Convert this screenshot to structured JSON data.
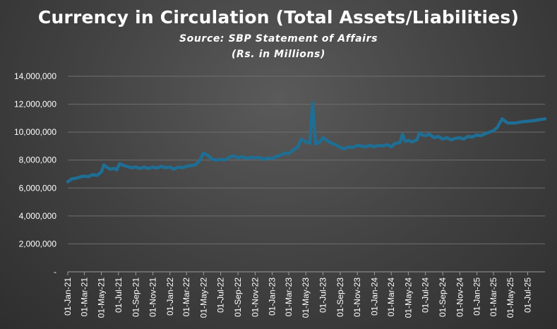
{
  "chart_data": {
    "type": "line",
    "title": "Currency in Circulation (Total Assets/Liabilities)",
    "subtitle_line1": "Source: SBP Statement of Affairs",
    "subtitle_line2": "(Rs. in Millions)",
    "xlabel": "",
    "ylabel": "",
    "ylim": [
      0,
      14000000
    ],
    "yticks": [
      0,
      2000000,
      4000000,
      6000000,
      8000000,
      10000000,
      12000000,
      14000000
    ],
    "ytick_labels": [
      "-",
      "2,000,000",
      "4,000,000",
      "6,000,000",
      "8,000,000",
      "10,000,000",
      "12,000,000",
      "14,000,000"
    ],
    "xtick_labels": [
      "01-Jan-21",
      "01-Mar-21",
      "01-May-21",
      "01-Jul-21",
      "01-Sep-21",
      "01-Nov-21",
      "01-Jan-22",
      "01-Mar-22",
      "01-May-22",
      "01-Jul-22",
      "01-Sep-22",
      "01-Nov-22",
      "01-Jan-23",
      "01-Mar-23",
      "01-May-23",
      "01-Jul-23",
      "01-Sep-23",
      "01-Nov-23",
      "01-Jan-24",
      "01-Mar-24",
      "01-May-24",
      "01-Jul-24",
      "01-Sep-24",
      "01-Nov-24",
      "01-Jan-25",
      "01-Mar-25",
      "01-May-25",
      "01-Jul-25"
    ],
    "x_range": [
      "01-Jan-21",
      "01-Sep-25"
    ],
    "grid": "horizontal",
    "line_color": "#1f6e94",
    "series": [
      {
        "values": [
          [
            "2021-01-01",
            6450000
          ],
          [
            "2021-01-15",
            6650000
          ],
          [
            "2021-02-01",
            6700000
          ],
          [
            "2021-02-15",
            6800000
          ],
          [
            "2021-03-01",
            6850000
          ],
          [
            "2021-03-15",
            6820000
          ],
          [
            "2021-04-01",
            6950000
          ],
          [
            "2021-04-15",
            6900000
          ],
          [
            "2021-05-01",
            7150000
          ],
          [
            "2021-05-10",
            7650000
          ],
          [
            "2021-05-20",
            7500000
          ],
          [
            "2021-06-01",
            7350000
          ],
          [
            "2021-06-15",
            7400000
          ],
          [
            "2021-06-25",
            7300000
          ],
          [
            "2021-07-05",
            7750000
          ],
          [
            "2021-07-20",
            7600000
          ],
          [
            "2021-08-01",
            7550000
          ],
          [
            "2021-08-15",
            7450000
          ],
          [
            "2021-09-01",
            7500000
          ],
          [
            "2021-09-15",
            7400000
          ],
          [
            "2021-10-01",
            7500000
          ],
          [
            "2021-10-15",
            7400000
          ],
          [
            "2021-11-01",
            7500000
          ],
          [
            "2021-11-15",
            7420000
          ],
          [
            "2021-12-01",
            7550000
          ],
          [
            "2021-12-15",
            7450000
          ],
          [
            "2022-01-01",
            7500000
          ],
          [
            "2022-01-15",
            7350000
          ],
          [
            "2022-02-01",
            7500000
          ],
          [
            "2022-02-15",
            7450000
          ],
          [
            "2022-03-01",
            7550000
          ],
          [
            "2022-03-15",
            7600000
          ],
          [
            "2022-04-01",
            7650000
          ],
          [
            "2022-04-15",
            7900000
          ],
          [
            "2022-05-01",
            8500000
          ],
          [
            "2022-05-15",
            8350000
          ],
          [
            "2022-06-01",
            8050000
          ],
          [
            "2022-06-15",
            8000000
          ],
          [
            "2022-07-01",
            8050000
          ],
          [
            "2022-07-15",
            8000000
          ],
          [
            "2022-08-01",
            8200000
          ],
          [
            "2022-08-15",
            8300000
          ],
          [
            "2022-09-01",
            8150000
          ],
          [
            "2022-09-15",
            8250000
          ],
          [
            "2022-10-01",
            8100000
          ],
          [
            "2022-10-15",
            8200000
          ],
          [
            "2022-11-01",
            8150000
          ],
          [
            "2022-11-15",
            8200000
          ],
          [
            "2022-12-01",
            8050000
          ],
          [
            "2022-12-15",
            8150000
          ],
          [
            "2023-01-01",
            8100000
          ],
          [
            "2023-01-15",
            8250000
          ],
          [
            "2023-02-01",
            8350000
          ],
          [
            "2023-02-15",
            8500000
          ],
          [
            "2023-03-01",
            8450000
          ],
          [
            "2023-03-15",
            8700000
          ],
          [
            "2023-04-01",
            8900000
          ],
          [
            "2023-04-15",
            9500000
          ],
          [
            "2023-05-01",
            9300000
          ],
          [
            "2023-05-15",
            9200000
          ],
          [
            "2023-05-25",
            12100000
          ],
          [
            "2023-06-05",
            9150000
          ],
          [
            "2023-06-20",
            9300000
          ],
          [
            "2023-07-01",
            9600000
          ],
          [
            "2023-07-15",
            9400000
          ],
          [
            "2023-08-01",
            9200000
          ],
          [
            "2023-08-15",
            9100000
          ],
          [
            "2023-09-01",
            8900000
          ],
          [
            "2023-09-15",
            8800000
          ],
          [
            "2023-10-01",
            8950000
          ],
          [
            "2023-10-15",
            8900000
          ],
          [
            "2023-11-01",
            9050000
          ],
          [
            "2023-11-15",
            9000000
          ],
          [
            "2023-12-01",
            8950000
          ],
          [
            "2023-12-15",
            9050000
          ],
          [
            "2024-01-01",
            8950000
          ],
          [
            "2024-01-15",
            9050000
          ],
          [
            "2024-02-01",
            9000000
          ],
          [
            "2024-02-15",
            9100000
          ],
          [
            "2024-03-01",
            8950000
          ],
          [
            "2024-03-15",
            9200000
          ],
          [
            "2024-04-01",
            9250000
          ],
          [
            "2024-04-10",
            9850000
          ],
          [
            "2024-04-20",
            9350000
          ],
          [
            "2024-05-01",
            9400000
          ],
          [
            "2024-05-15",
            9300000
          ],
          [
            "2024-06-01",
            9450000
          ],
          [
            "2024-06-10",
            9950000
          ],
          [
            "2024-06-20",
            9800000
          ],
          [
            "2024-07-01",
            9750000
          ],
          [
            "2024-07-15",
            9850000
          ],
          [
            "2024-08-01",
            9600000
          ],
          [
            "2024-08-15",
            9700000
          ],
          [
            "2024-09-01",
            9500000
          ],
          [
            "2024-09-15",
            9600000
          ],
          [
            "2024-10-01",
            9450000
          ],
          [
            "2024-10-15",
            9550000
          ],
          [
            "2024-11-01",
            9600000
          ],
          [
            "2024-11-15",
            9500000
          ],
          [
            "2024-12-01",
            9700000
          ],
          [
            "2024-12-15",
            9650000
          ],
          [
            "2025-01-01",
            9800000
          ],
          [
            "2025-01-15",
            9750000
          ],
          [
            "2025-02-01",
            9900000
          ],
          [
            "2025-02-15",
            10000000
          ],
          [
            "2025-03-01",
            10100000
          ],
          [
            "2025-03-15",
            10350000
          ],
          [
            "2025-04-01",
            10950000
          ],
          [
            "2025-04-20",
            10650000
          ],
          [
            "2025-05-15",
            10650000
          ],
          [
            "2025-06-15",
            10750000
          ],
          [
            "2025-07-15",
            10800000
          ],
          [
            "2025-08-15",
            10900000
          ],
          [
            "2025-09-01",
            10950000
          ]
        ]
      }
    ]
  }
}
